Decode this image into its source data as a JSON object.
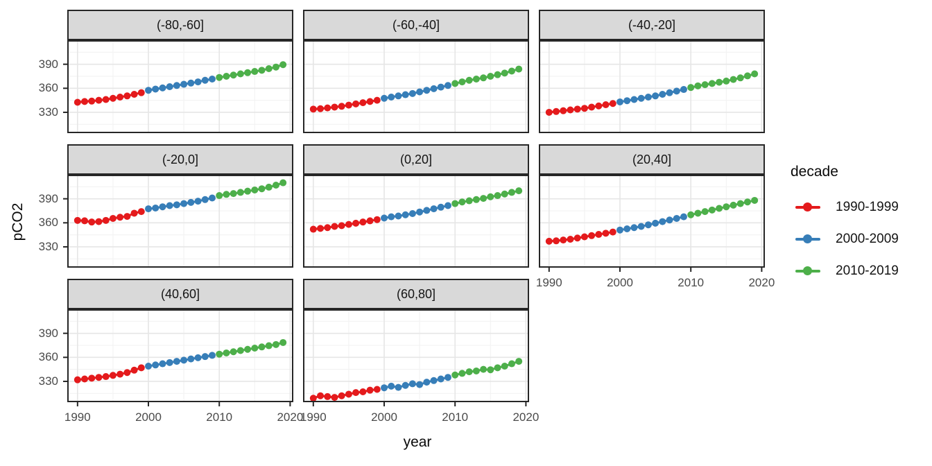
{
  "chart_data": {
    "type": "scatter",
    "title": "",
    "xlabel": "year",
    "ylabel": "pCO2",
    "x_range": [
      1988.55,
      2020.45
    ],
    "y_range": [
      304,
      420
    ],
    "grid": "on",
    "x": [
      1990,
      1991,
      1992,
      1993,
      1994,
      1995,
      1996,
      1997,
      1998,
      1999,
      2000,
      2001,
      2002,
      2003,
      2004,
      2005,
      2006,
      2007,
      2008,
      2009,
      2010,
      2011,
      2012,
      2013,
      2014,
      2015,
      2016,
      2017,
      2018,
      2019
    ],
    "axes": {
      "x_major": [
        1990,
        2000,
        2010,
        2020
      ],
      "x_minor": [
        1995,
        2005,
        2015
      ],
      "y_major": [
        390,
        360,
        330
      ],
      "y_minor": [
        405,
        375,
        345,
        315
      ],
      "x_tick_labels": [
        "1990",
        "2000",
        "2010",
        "2020"
      ],
      "y_tick_labels": [
        "390",
        "360",
        "330"
      ]
    },
    "legend": {
      "title": "decade",
      "position": "right",
      "items": [
        {
          "label": "1990-1999",
          "color": "#E41A1C"
        },
        {
          "label": "2000-2009",
          "color": "#377EB8"
        },
        {
          "label": "2010-2019",
          "color": "#4DAF4A"
        }
      ]
    },
    "facets": [
      {
        "label": "(-80,-60]",
        "row": 0,
        "col": 0,
        "values": [
          342.5,
          343.5,
          344,
          345,
          346,
          347.5,
          349,
          350.5,
          352.5,
          354.5,
          357.5,
          359,
          360.5,
          362,
          363.5,
          365,
          366.5,
          368,
          370,
          371.5,
          373.5,
          375,
          376.5,
          378,
          379.5,
          381,
          382.5,
          384.5,
          386.5,
          389.5
        ]
      },
      {
        "label": "(-60,-40]",
        "row": 0,
        "col": 1,
        "values": [
          334,
          334.5,
          335.5,
          336.5,
          337.5,
          339,
          340.5,
          342,
          343.5,
          345,
          347.5,
          349,
          350.5,
          352,
          353.5,
          355.5,
          357.5,
          359.5,
          361.5,
          363.5,
          366,
          368,
          370,
          371.5,
          373,
          375,
          377,
          379,
          381.5,
          384
        ]
      },
      {
        "label": "(-40,-20]",
        "row": 0,
        "col": 2,
        "values": [
          330,
          331,
          332,
          333,
          334,
          335,
          336.5,
          338,
          339.5,
          341,
          343,
          344.5,
          346,
          347.5,
          349,
          350.5,
          352.5,
          354.5,
          356.5,
          358.5,
          361,
          363,
          364.5,
          366,
          367.5,
          369,
          371,
          373,
          375.5,
          378
        ]
      },
      {
        "label": "(-20,0]",
        "row": 1,
        "col": 0,
        "values": [
          363,
          362.5,
          361,
          361.5,
          363,
          365.5,
          367,
          368,
          372,
          374,
          377.5,
          378.5,
          380,
          381.5,
          382.5,
          384,
          385.5,
          387,
          389,
          391,
          394,
          395.5,
          396.5,
          398,
          399.5,
          401,
          402.5,
          404.5,
          407,
          410
        ]
      },
      {
        "label": "(0,20]",
        "row": 1,
        "col": 1,
        "values": [
          352,
          353,
          354,
          355.5,
          356.5,
          358,
          359.5,
          361,
          362.5,
          364,
          366,
          367.5,
          368.5,
          370,
          371.5,
          373.5,
          375.5,
          377.5,
          379.5,
          381.5,
          384,
          386,
          387.5,
          389,
          390.5,
          392.5,
          394,
          396,
          398,
          400
        ]
      },
      {
        "label": "(20,40]",
        "row": 1,
        "col": 2,
        "values": [
          337,
          337.5,
          338.5,
          339.5,
          341,
          342.5,
          344,
          345.5,
          347,
          348.5,
          351,
          352.5,
          354,
          355.5,
          357.5,
          359.5,
          361.5,
          363.5,
          365.5,
          367.5,
          370,
          372,
          374,
          376,
          378,
          380,
          382,
          384,
          386,
          388
        ]
      },
      {
        "label": "(40,60]",
        "row": 2,
        "col": 0,
        "values": [
          332,
          333,
          334,
          335,
          336,
          337.5,
          339,
          341,
          344,
          347,
          349,
          350.5,
          352,
          353.5,
          355,
          356.5,
          358,
          359.5,
          361,
          362.5,
          364,
          365.5,
          367,
          368.5,
          370,
          371.5,
          373,
          374.5,
          376,
          378.5
        ]
      },
      {
        "label": "(60,80]",
        "row": 2,
        "col": 1,
        "values": [
          309,
          312,
          311,
          310,
          312,
          314,
          316,
          317,
          319,
          320,
          322,
          324,
          322.5,
          325,
          327,
          326,
          329,
          331,
          333,
          335,
          338,
          340,
          342,
          343,
          345,
          344.5,
          347,
          349,
          352,
          355
        ]
      }
    ],
    "style": {
      "grid_major_color": "#e6e6e6",
      "grid_minor_color": "#f3f3f3",
      "panel_border_color": "#262626",
      "strip_bg_color": "#d9d9d9"
    }
  }
}
